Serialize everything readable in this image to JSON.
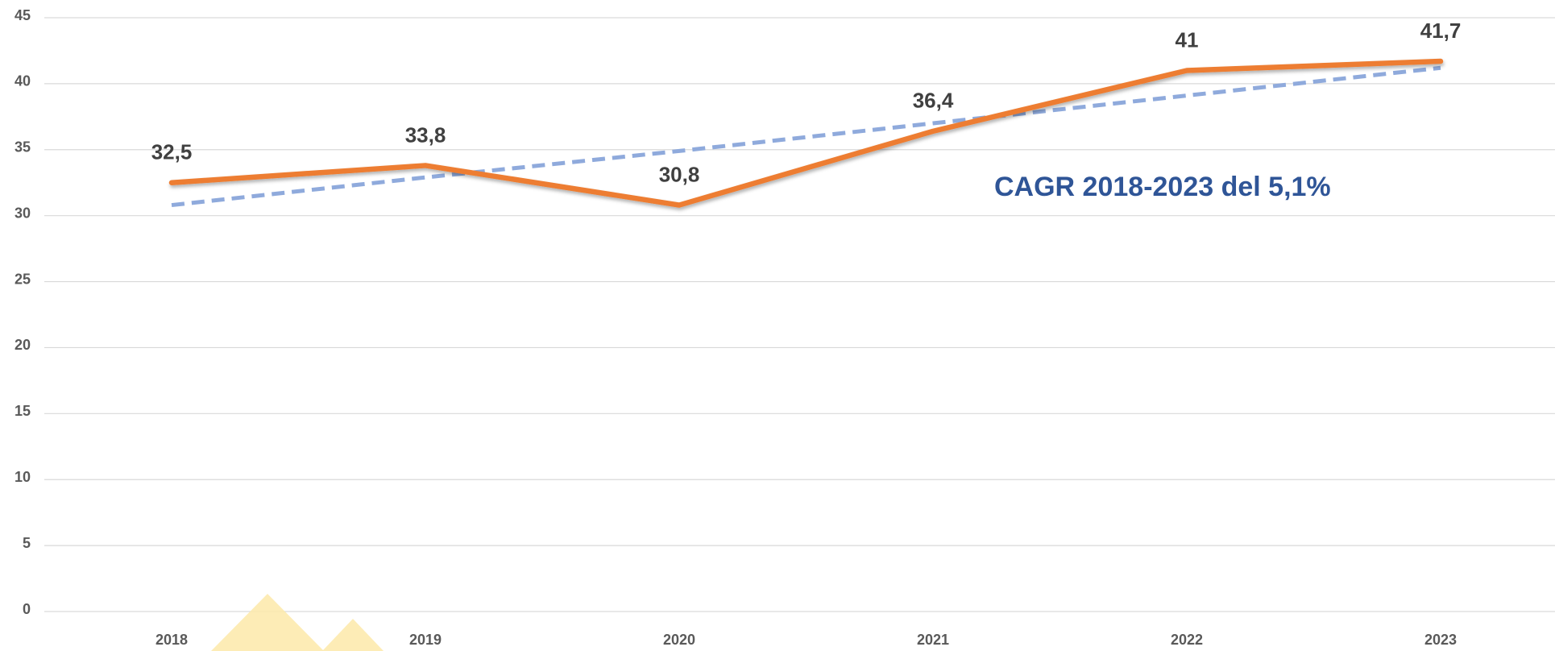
{
  "chart_data": {
    "type": "line",
    "categories": [
      "2018",
      "2019",
      "2020",
      "2021",
      "2022",
      "2023"
    ],
    "series": [
      {
        "color": "#ed7d31",
        "style": "solid",
        "values": [
          32.5,
          33.8,
          30.8,
          36.4,
          41,
          41.7
        ],
        "value_labels": [
          "32,5",
          "33,8",
          "30,8",
          "36,4",
          "41",
          "41,7"
        ]
      },
      {
        "color": "#8faadc",
        "style": "dashed",
        "values": [
          30.8,
          32.9,
          34.9,
          37.0,
          39.1,
          41.2
        ]
      }
    ],
    "annotation": "CAGR 2018-2023 del 5,1%",
    "ylim": [
      0,
      45
    ],
    "yticks": [
      0,
      5,
      10,
      15,
      20,
      25,
      30,
      35,
      40,
      45
    ],
    "grid": true
  }
}
